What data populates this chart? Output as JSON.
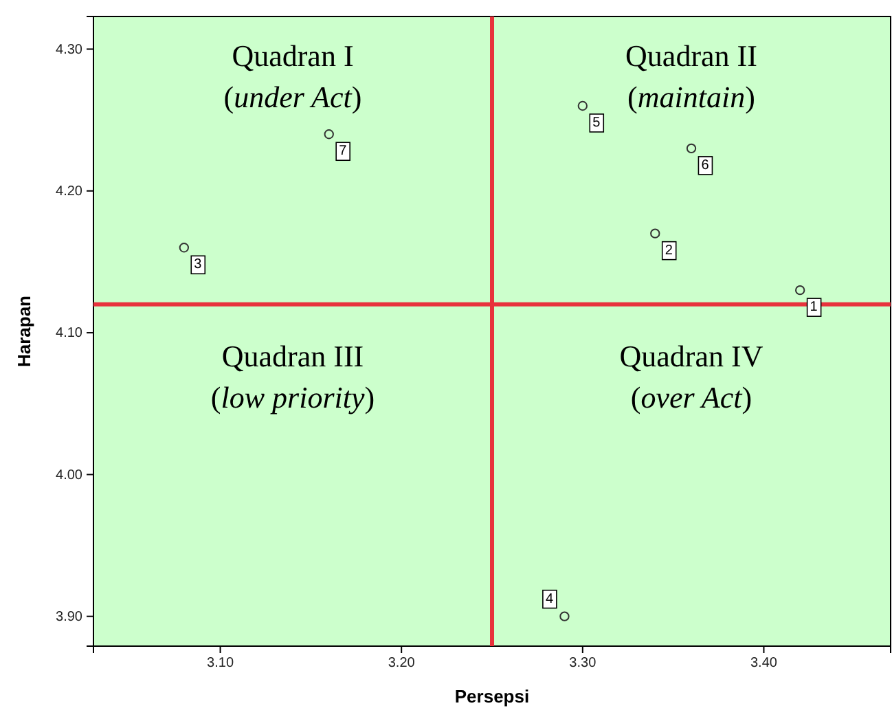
{
  "chart_data": {
    "type": "scatter",
    "xlabel": "Persepsi",
    "ylabel": "Harapan",
    "x": [
      3.42,
      3.34,
      3.08,
      3.29,
      3.3,
      3.36,
      3.16
    ],
    "series": [
      {
        "color": "#333333",
        "values": [
          4.13,
          4.17,
          4.16,
          3.9,
          4.26,
          4.23,
          4.24
        ]
      }
    ],
    "marker": "circle",
    "xlim": [
      3.03,
      3.47
    ],
    "ylim": [
      3.879,
      4.323
    ],
    "xticks": [
      {
        "value": 3.1,
        "label": "3.10"
      },
      {
        "value": 3.2,
        "label": "3.20"
      },
      {
        "value": 3.3,
        "label": "3.30"
      },
      {
        "value": 3.4,
        "label": "3.40"
      }
    ],
    "yticks": [
      {
        "value": 3.9,
        "label": "3.90"
      },
      {
        "value": 4.0,
        "label": "4.00"
      },
      {
        "value": 4.1,
        "label": "4.10"
      },
      {
        "value": 4.2,
        "label": "4.20"
      },
      {
        "value": 4.3,
        "label": "4.30"
      }
    ],
    "grid": false,
    "ref_lines": [
      {
        "axis": "x",
        "value": 3.25,
        "color": "#e8323c"
      },
      {
        "axis": "y",
        "value": 4.12,
        "color": "#e8323c"
      }
    ],
    "annotations": [
      "Quadran I (under Act)",
      "Quadran II (maintain)",
      "Quadran III (low priority)",
      "Quadran IV (over Act)",
      {
        "text": "1",
        "x": 3.42,
        "y": 4.13
      },
      {
        "text": "2",
        "x": 3.34,
        "y": 4.17
      },
      {
        "text": "3",
        "x": 3.08,
        "y": 4.16
      },
      {
        "text": "4",
        "x": 3.29,
        "y": 3.9
      },
      {
        "text": "5",
        "x": 3.3,
        "y": 4.26
      },
      {
        "text": "6",
        "x": 3.36,
        "y": 4.23
      },
      {
        "text": "7",
        "x": 3.16,
        "y": 4.24
      }
    ]
  }
}
